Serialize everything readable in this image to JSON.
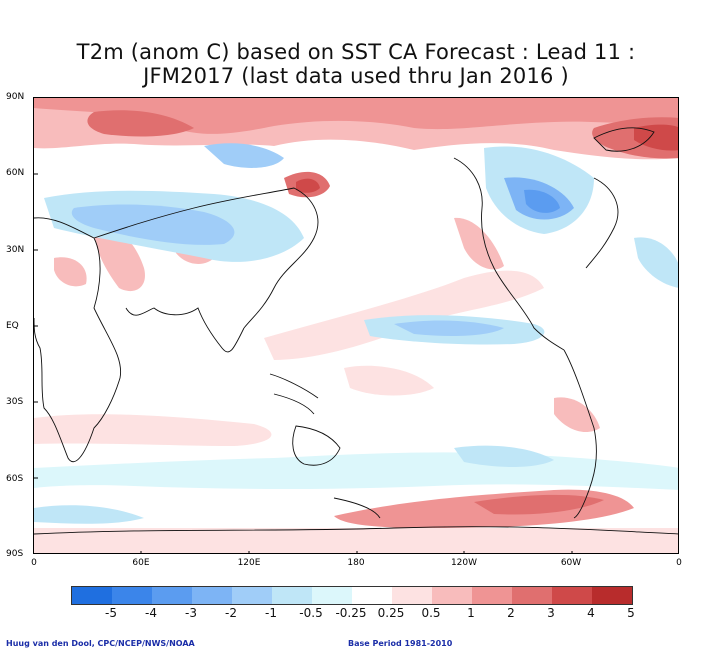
{
  "title": {
    "line1": "T2m (anom C) based on SST CA Forecast : Lead 11 :",
    "line2": "JFM2017 (last data used thru Jan 2016 )"
  },
  "latitude_labels": [
    "90N",
    "60N",
    "30N",
    "EQ",
    "30S",
    "60S",
    "90S"
  ],
  "longitude_labels": [
    "0",
    "60E",
    "120E",
    "180",
    "120W",
    "60W",
    "0"
  ],
  "colorbar": {
    "labels": [
      "-5",
      "-4",
      "-3",
      "-2",
      "-1",
      "-0.5",
      "-0.25",
      "0.25",
      "0.5",
      "1",
      "2",
      "3",
      "4",
      "5"
    ],
    "colors": [
      "#1f6fe0",
      "#3b85ea",
      "#5b9cf0",
      "#7db4f5",
      "#a0cdf8",
      "#bfe6f7",
      "#dcf7fb",
      "#ffffff",
      "#fde2e2",
      "#f8bcbc",
      "#ef9494",
      "#e06f6f",
      "#cf4949",
      "#b82c2c"
    ]
  },
  "footer": {
    "credit": "Huug van den Dool, CPC/NCEP/NWS/NOAA",
    "base_period": "Base Period 1981-2010"
  }
}
